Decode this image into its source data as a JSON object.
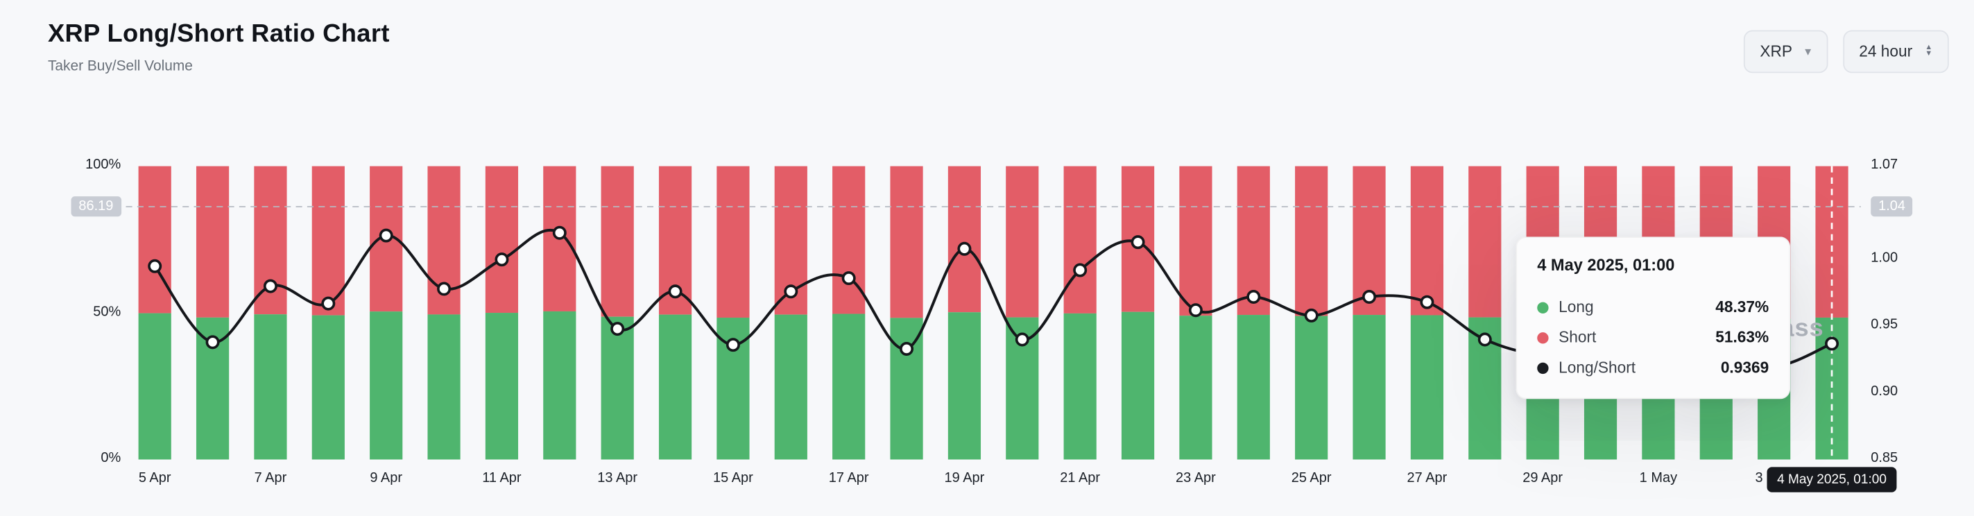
{
  "header": {
    "title": "XRP Long/Short Ratio Chart",
    "subtitle": "Taker Buy/Sell Volume"
  },
  "controls": {
    "symbol": "XRP",
    "interval": "24 hour"
  },
  "watermark": "coinglass",
  "crosshair": {
    "y_left": "86.19",
    "y_right": "1.04",
    "x_label": "4 May 2025, 01:00"
  },
  "tooltip": {
    "title": "4 May 2025, 01:00",
    "rows": [
      {
        "label": "Long",
        "value": "48.37%",
        "color": "#4fb56e"
      },
      {
        "label": "Short",
        "value": "51.63%",
        "color": "#e35d67"
      },
      {
        "label": "Long/Short",
        "value": "0.9369",
        "color": "#1a1d22"
      }
    ]
  },
  "chart_data": {
    "type": "bar",
    "subtype": "stacked-percent-bars-with-ratio-line",
    "title": "XRP Long/Short Ratio Chart",
    "x": [
      "5 Apr",
      "6 Apr",
      "7 Apr",
      "8 Apr",
      "9 Apr",
      "10 Apr",
      "11 Apr",
      "12 Apr",
      "13 Apr",
      "14 Apr",
      "15 Apr",
      "16 Apr",
      "17 Apr",
      "18 Apr",
      "19 Apr",
      "20 Apr",
      "21 Apr",
      "22 Apr",
      "23 Apr",
      "24 Apr",
      "25 Apr",
      "26 Apr",
      "27 Apr",
      "28 Apr",
      "29 Apr",
      "30 Apr",
      "1 May",
      "2 May",
      "3 May",
      "4 May"
    ],
    "series": [
      {
        "name": "Long",
        "type": "bar",
        "unit": "%",
        "color": "#4fb56e",
        "values": [
          49.87,
          48.4,
          49.49,
          49.16,
          50.45,
          49.44,
          50.0,
          50.5,
          48.67,
          49.39,
          48.35,
          49.39,
          49.65,
          48.27,
          50.2,
          48.45,
          49.8,
          50.32,
          49.03,
          49.29,
          48.93,
          49.29,
          49.19,
          48.45,
          48.19,
          48.59,
          48.72,
          48.32,
          47.92,
          48.37
        ]
      },
      {
        "name": "Short",
        "type": "bar",
        "unit": "%",
        "color": "#e35d67",
        "values": [
          50.13,
          51.6,
          50.51,
          50.84,
          49.55,
          50.56,
          50.0,
          49.5,
          51.33,
          50.61,
          51.65,
          50.61,
          50.35,
          51.73,
          49.8,
          51.55,
          50.2,
          49.68,
          50.97,
          50.71,
          51.07,
          50.71,
          50.81,
          51.55,
          51.81,
          51.41,
          51.28,
          51.68,
          52.08,
          51.63
        ]
      },
      {
        "name": "Long/Short",
        "type": "line",
        "color": "#15171b",
        "values": [
          0.995,
          0.938,
          0.98,
          0.967,
          1.018,
          0.978,
          1.0,
          1.02,
          0.948,
          0.976,
          0.936,
          0.976,
          0.986,
          0.933,
          1.008,
          0.94,
          0.992,
          1.013,
          0.962,
          0.972,
          0.958,
          0.972,
          0.968,
          0.94,
          0.93,
          0.945,
          0.95,
          0.935,
          0.92,
          0.9369
        ]
      }
    ],
    "left_axis": {
      "min": 0,
      "max": 100,
      "ticks": [
        {
          "label": "100%",
          "value": 100
        },
        {
          "label": "50%",
          "value": 50
        },
        {
          "label": "0%",
          "value": 0
        }
      ]
    },
    "right_axis": {
      "min": 0.85,
      "max": 1.07,
      "ticks": [
        {
          "label": "1.07",
          "value": 1.07
        },
        {
          "label": "1.00",
          "value": 1.0
        },
        {
          "label": "0.95",
          "value": 0.95
        },
        {
          "label": "0.90",
          "value": 0.9
        },
        {
          "label": "0.85",
          "value": 0.85
        }
      ]
    },
    "x_tick_every": 2,
    "highlight_index": 29,
    "crosshair_y_percent": 86.19,
    "grid": false,
    "legend_position": "none"
  }
}
